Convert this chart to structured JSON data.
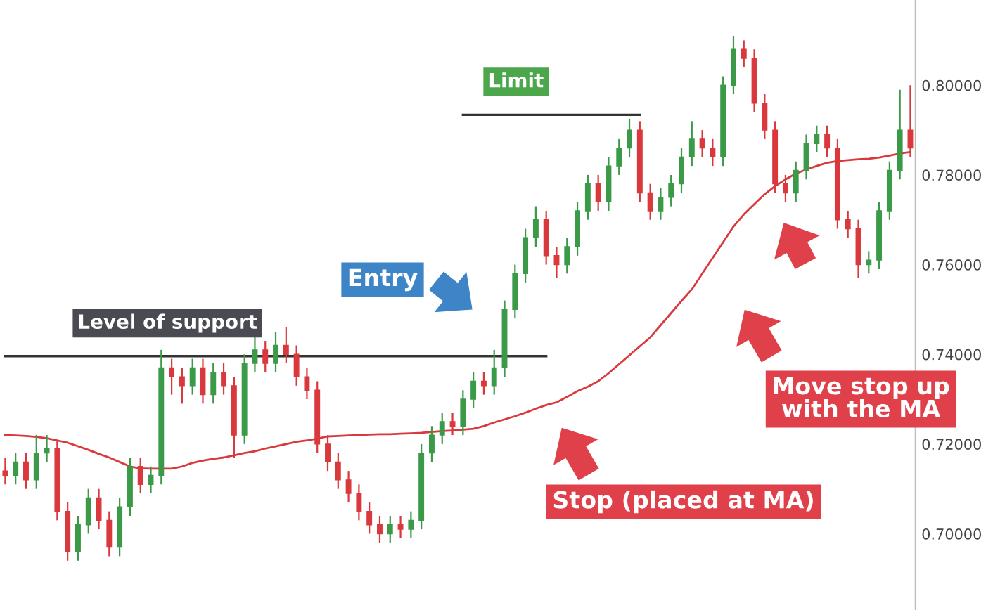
{
  "chart_data": {
    "type": "candlestick",
    "categories": [
      null,
      null,
      null,
      null,
      null,
      null,
      null,
      null,
      null,
      null,
      null,
      null,
      null,
      null,
      null,
      null,
      null,
      null,
      null,
      null,
      null,
      null,
      null,
      null,
      null,
      null,
      null,
      null,
      null,
      null,
      null,
      null,
      null,
      null,
      null,
      null,
      null,
      null,
      null,
      null,
      null,
      null,
      null,
      null,
      null,
      null,
      null,
      null,
      null,
      null,
      null,
      null,
      null,
      null,
      null,
      null,
      null,
      null,
      null,
      null,
      null,
      null,
      null,
      null,
      null,
      null,
      null,
      null,
      null,
      null,
      null,
      null,
      null,
      null,
      null,
      null,
      null,
      null,
      null,
      null,
      null,
      null,
      null,
      null,
      null,
      null,
      null,
      null
    ],
    "colors": [
      "#d9383c",
      "#3a9a48",
      "#d9383c",
      "#3a9a48",
      "#3a9a48",
      "#d9383c",
      "#d9383c",
      "#3a9a48",
      "#3a9a48",
      "#d9383c",
      "#d9383c",
      "#3a9a48",
      "#3a9a48",
      "#d9383c",
      "#3a9a48",
      "#3a9a48",
      "#d9383c",
      "#d9383c",
      "#3a9a48",
      "#d9383c",
      "#3a9a48",
      "#d9383c",
      "#d9383c",
      "#3a9a48",
      "#3a9a48",
      "#d9383c",
      "#3a9a48",
      "#d9383c",
      "#d9383c",
      "#d9383c",
      "#d9383c",
      "#d9383c",
      "#d9383c",
      "#d9383c",
      "#d9383c",
      "#d9383c",
      "#d9383c",
      "#3a9a48",
      "#d9383c",
      "#3a9a48",
      "#3a9a48",
      "#3a9a48",
      "#3a9a48",
      "#d9383c",
      "#3a9a48",
      "#3a9a48",
      "#d9383c",
      "#3a9a48",
      "#3a9a48",
      "#3a9a48",
      "#3a9a48",
      "#3a9a48",
      "#d9383c",
      "#d9383c",
      "#3a9a48",
      "#3a9a48",
      "#3a9a48",
      "#d9383c",
      "#3a9a48",
      "#3a9a48",
      "#3a9a48",
      "#d9383c",
      "#d9383c",
      "#3a9a48",
      "#3a9a48",
      "#3a9a48",
      "#3a9a48",
      "#d9383c",
      "#d9383c",
      "#3a9a48",
      "#3a9a48",
      "#d9383c",
      "#d9383c",
      "#d9383c",
      "#d9383c",
      "#d9383c",
      "#3a9a48",
      "#3a9a48",
      "#3a9a48",
      "#d9383c",
      "#d9383c",
      "#d9383c",
      "#d9383c",
      "#3a9a48",
      "#3a9a48",
      "#3a9a48",
      "#3a9a48",
      "#d9383c"
    ],
    "ohlc": [
      [
        0.714,
        0.717,
        0.711,
        0.713
      ],
      [
        0.713,
        0.718,
        0.711,
        0.716
      ],
      [
        0.716,
        0.718,
        0.71,
        0.712
      ],
      [
        0.712,
        0.722,
        0.71,
        0.718
      ],
      [
        0.718,
        0.722,
        0.716,
        0.719
      ],
      [
        0.719,
        0.721,
        0.703,
        0.705
      ],
      [
        0.705,
        0.707,
        0.694,
        0.696
      ],
      [
        0.696,
        0.704,
        0.694,
        0.702
      ],
      [
        0.702,
        0.71,
        0.7,
        0.708
      ],
      [
        0.708,
        0.71,
        0.701,
        0.703
      ],
      [
        0.703,
        0.705,
        0.695,
        0.697
      ],
      [
        0.697,
        0.708,
        0.695,
        0.706
      ],
      [
        0.706,
        0.717,
        0.704,
        0.715
      ],
      [
        0.715,
        0.717,
        0.709,
        0.711
      ],
      [
        0.711,
        0.715,
        0.709,
        0.713
      ],
      [
        0.713,
        0.741,
        0.711,
        0.737
      ],
      [
        0.737,
        0.739,
        0.731,
        0.735
      ],
      [
        0.735,
        0.737,
        0.729,
        0.733
      ],
      [
        0.733,
        0.739,
        0.731,
        0.737
      ],
      [
        0.737,
        0.739,
        0.729,
        0.731
      ],
      [
        0.731,
        0.738,
        0.729,
        0.736
      ],
      [
        0.736,
        0.738,
        0.731,
        0.733
      ],
      [
        0.733,
        0.735,
        0.717,
        0.722
      ],
      [
        0.722,
        0.74,
        0.72,
        0.738
      ],
      [
        0.738,
        0.744,
        0.736,
        0.741
      ],
      [
        0.741,
        0.743,
        0.736,
        0.738
      ],
      [
        0.738,
        0.745,
        0.736,
        0.742
      ],
      [
        0.742,
        0.746,
        0.738,
        0.74
      ],
      [
        0.74,
        0.742,
        0.733,
        0.735
      ],
      [
        0.735,
        0.737,
        0.73,
        0.732
      ],
      [
        0.732,
        0.734,
        0.718,
        0.72
      ],
      [
        0.72,
        0.722,
        0.714,
        0.716
      ],
      [
        0.716,
        0.718,
        0.71,
        0.712
      ],
      [
        0.712,
        0.714,
        0.707,
        0.709
      ],
      [
        0.709,
        0.711,
        0.703,
        0.705
      ],
      [
        0.705,
        0.707,
        0.7,
        0.702
      ],
      [
        0.702,
        0.704,
        0.698,
        0.7
      ],
      [
        0.7,
        0.704,
        0.698,
        0.702
      ],
      [
        0.702,
        0.704,
        0.699,
        0.701
      ],
      [
        0.701,
        0.705,
        0.699,
        0.703
      ],
      [
        0.703,
        0.72,
        0.701,
        0.718
      ],
      [
        0.718,
        0.724,
        0.716,
        0.722
      ],
      [
        0.722,
        0.727,
        0.72,
        0.725
      ],
      [
        0.725,
        0.727,
        0.722,
        0.724
      ],
      [
        0.724,
        0.732,
        0.722,
        0.73
      ],
      [
        0.73,
        0.736,
        0.728,
        0.734
      ],
      [
        0.734,
        0.736,
        0.731,
        0.733
      ],
      [
        0.733,
        0.741,
        0.731,
        0.737
      ],
      [
        0.737,
        0.752,
        0.735,
        0.75
      ],
      [
        0.75,
        0.76,
        0.748,
        0.758
      ],
      [
        0.758,
        0.768,
        0.756,
        0.766
      ],
      [
        0.766,
        0.773,
        0.764,
        0.77
      ],
      [
        0.77,
        0.772,
        0.76,
        0.762
      ],
      [
        0.762,
        0.764,
        0.757,
        0.76
      ],
      [
        0.76,
        0.766,
        0.758,
        0.764
      ],
      [
        0.764,
        0.774,
        0.762,
        0.772
      ],
      [
        0.772,
        0.78,
        0.77,
        0.778
      ],
      [
        0.778,
        0.78,
        0.772,
        0.774
      ],
      [
        0.774,
        0.784,
        0.772,
        0.782
      ],
      [
        0.782,
        0.788,
        0.78,
        0.786
      ],
      [
        0.786,
        0.7925,
        0.784,
        0.79
      ],
      [
        0.79,
        0.792,
        0.774,
        0.776
      ],
      [
        0.776,
        0.778,
        0.77,
        0.772
      ],
      [
        0.772,
        0.777,
        0.77,
        0.775
      ],
      [
        0.775,
        0.78,
        0.773,
        0.778
      ],
      [
        0.778,
        0.786,
        0.776,
        0.784
      ],
      [
        0.784,
        0.792,
        0.782,
        0.788
      ],
      [
        0.788,
        0.79,
        0.784,
        0.786
      ],
      [
        0.786,
        0.788,
        0.782,
        0.784
      ],
      [
        0.784,
        0.802,
        0.782,
        0.8
      ],
      [
        0.8,
        0.811,
        0.798,
        0.808
      ],
      [
        0.808,
        0.81,
        0.804,
        0.806
      ],
      [
        0.806,
        0.808,
        0.794,
        0.796
      ],
      [
        0.796,
        0.798,
        0.788,
        0.79
      ],
      [
        0.79,
        0.792,
        0.776,
        0.778
      ],
      [
        0.778,
        0.78,
        0.774,
        0.776
      ],
      [
        0.776,
        0.783,
        0.774,
        0.781
      ],
      [
        0.781,
        0.789,
        0.779,
        0.787
      ],
      [
        0.787,
        0.791,
        0.785,
        0.789
      ],
      [
        0.789,
        0.791,
        0.784,
        0.786
      ],
      [
        0.786,
        0.788,
        0.768,
        0.77
      ],
      [
        0.77,
        0.772,
        0.766,
        0.768
      ],
      [
        0.768,
        0.77,
        0.757,
        0.76
      ],
      [
        0.76,
        0.763,
        0.758,
        0.761
      ],
      [
        0.761,
        0.774,
        0.759,
        0.772
      ],
      [
        0.772,
        0.783,
        0.77,
        0.781
      ],
      [
        0.781,
        0.799,
        0.779,
        0.79
      ],
      [
        0.79,
        0.8,
        0.784,
        0.786
      ]
    ],
    "series": [
      {
        "type": "line",
        "color": "#d9383c",
        "values": [
          0.722,
          0.7219,
          0.7218,
          0.7216,
          0.7213,
          0.7208,
          0.7203,
          0.7195,
          0.7187,
          0.7178,
          0.717,
          0.716,
          0.715,
          0.7146,
          0.7145,
          0.7145,
          0.7145,
          0.715,
          0.7158,
          0.7163,
          0.7167,
          0.717,
          0.7175,
          0.718,
          0.7184,
          0.719,
          0.7195,
          0.72,
          0.7205,
          0.7208,
          0.7212,
          0.7217,
          0.7218,
          0.7219,
          0.722,
          0.7221,
          0.7222,
          0.7222,
          0.7223,
          0.7224,
          0.7225,
          0.7227,
          0.7229,
          0.723,
          0.7232,
          0.7234,
          0.724,
          0.7248,
          0.7255,
          0.7262,
          0.727,
          0.7279,
          0.7287,
          0.7293,
          0.7305,
          0.7318,
          0.7328,
          0.734,
          0.7358,
          0.7378,
          0.7398,
          0.7418,
          0.7438,
          0.7465,
          0.7492,
          0.7519,
          0.7545,
          0.758,
          0.7615,
          0.765,
          0.7685,
          0.7712,
          0.7735,
          0.7757,
          0.7775,
          0.779,
          0.7803,
          0.7812,
          0.782,
          0.7827,
          0.7831,
          0.7833,
          0.7835,
          0.7836,
          0.7839,
          0.7843,
          0.7848,
          0.7851
        ]
      },
      {
        "type": "line",
        "name": "Level of support",
        "color": "#333333",
        "values": [
          0.7396,
          0.7396,
          0.7396,
          0.7396,
          0.7396,
          0.7396,
          0.7396,
          0.7396,
          0.7396,
          0.7396,
          0.7396,
          0.7396,
          0.7396,
          0.7396,
          0.7396,
          0.7396,
          0.7396,
          0.7396,
          0.7396,
          0.7396,
          0.7396,
          0.7396,
          0.7396,
          0.7396,
          0.7396,
          0.7396,
          0.7396,
          0.7396,
          0.7396,
          0.7396,
          0.7396,
          0.7396,
          0.7396,
          0.7396,
          0.7396,
          0.7396,
          0.7396,
          0.7396,
          0.7396,
          0.7396,
          0.7396,
          0.7396,
          0.7396,
          0.7396,
          0.7396,
          0.7396,
          0.7396,
          0.7396,
          0.7396,
          0.7396,
          0.7396,
          0.7396,
          0.7396,
          null,
          null,
          null,
          null,
          null,
          null,
          null,
          null,
          null,
          null,
          null,
          null,
          null,
          null,
          null,
          null,
          null,
          null,
          null,
          null,
          null,
          null,
          null,
          null,
          null,
          null,
          null,
          null,
          null,
          null,
          null,
          null,
          null,
          null,
          null
        ]
      },
      {
        "type": "line",
        "name": "Limit",
        "color": "#333333",
        "values": [
          null,
          null,
          null,
          null,
          null,
          null,
          null,
          null,
          null,
          null,
          null,
          null,
          null,
          null,
          null,
          null,
          null,
          null,
          null,
          null,
          null,
          null,
          null,
          null,
          null,
          null,
          null,
          null,
          null,
          null,
          null,
          null,
          null,
          null,
          null,
          null,
          null,
          null,
          null,
          null,
          null,
          null,
          null,
          null,
          0.7934,
          0.7934,
          0.7934,
          0.7934,
          0.7934,
          0.7934,
          0.7934,
          0.7934,
          0.7934,
          0.7934,
          0.7934,
          0.7934,
          0.7934,
          0.7934,
          0.7934,
          0.7934,
          0.7934,
          0.7934,
          null,
          null,
          null,
          null,
          null,
          null,
          null,
          null,
          null,
          null,
          null,
          null,
          null,
          null,
          null,
          null,
          null,
          null,
          null,
          null,
          null,
          null,
          null,
          null,
          null,
          null
        ]
      }
    ],
    "ylim": [
      0.683,
      0.819
    ],
    "yticks": [
      {
        "value": 0.7,
        "label": "0.70000"
      },
      {
        "value": 0.72,
        "label": "0.72000"
      },
      {
        "value": 0.74,
        "label": "0.74000"
      },
      {
        "value": 0.76,
        "label": "0.76000"
      },
      {
        "value": 0.78,
        "label": "0.78000"
      },
      {
        "value": 0.8,
        "label": "0.80000"
      }
    ],
    "tick_labels": "y",
    "annotations": [
      "Entry",
      "Stop (placed at MA)",
      "Move stop up\nwith the MA"
    ]
  }
}
